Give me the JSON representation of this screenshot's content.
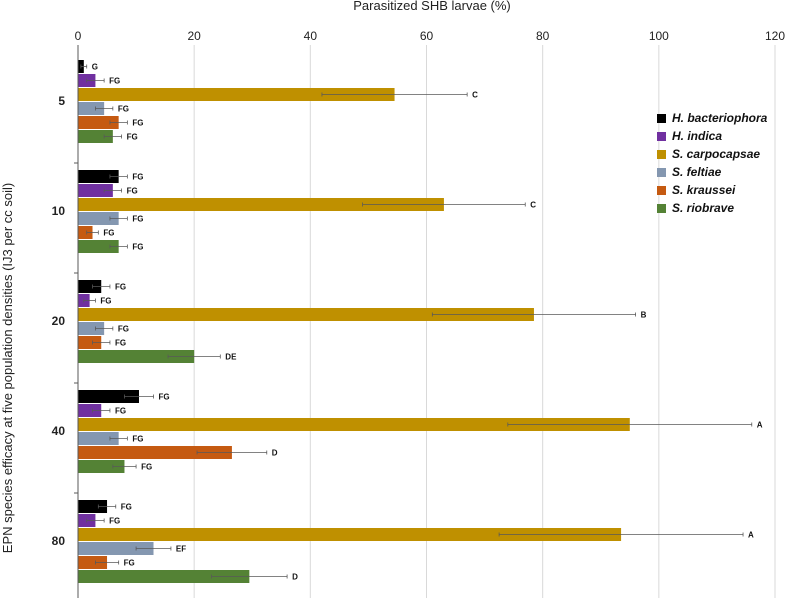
{
  "chart_data": {
    "type": "bar",
    "orientation": "horizontal",
    "title": "Parasitized SHB  larvae (%)",
    "xlabel": "Parasitized SHB  larvae (%)",
    "ylabel": "EPN species efficacy at five population densities (IJ3 per cc soil)",
    "xlim": [
      0,
      120
    ],
    "xticks": [
      "0",
      "20",
      "40",
      "60",
      "80",
      "100",
      "120"
    ],
    "categories": [
      "5",
      "10",
      "20",
      "40",
      "80"
    ],
    "legend_position": "right",
    "series": [
      {
        "name": "H. bacteriophora",
        "color": "#000000",
        "values": [
          1,
          7,
          4,
          10.5,
          5
        ],
        "errors": [
          0.5,
          1.5,
          1.5,
          2.5,
          1.5
        ],
        "labels": [
          "G",
          "FG",
          "FG",
          "FG",
          "FG"
        ]
      },
      {
        "name": "H. indica",
        "color": "#7030a0",
        "values": [
          3,
          6,
          2,
          4,
          3
        ],
        "errors": [
          1.5,
          1.5,
          1,
          1.5,
          1.5
        ],
        "labels": [
          "FG",
          "FG",
          "FG",
          "FG",
          "FG"
        ]
      },
      {
        "name": "S. carpocapsae",
        "color": "#bf9000",
        "values": [
          54.5,
          63,
          78.5,
          95,
          93.5
        ],
        "errors": [
          12.5,
          14,
          17.5,
          21,
          21
        ],
        "labels": [
          "C",
          "C",
          "B",
          "A",
          "A"
        ]
      },
      {
        "name": "S. feltiae",
        "color": "#8497b0",
        "values": [
          4.5,
          7,
          4.5,
          7,
          13
        ],
        "errors": [
          1.5,
          1.5,
          1.5,
          1.5,
          3
        ],
        "labels": [
          "FG",
          "FG",
          "FG",
          "FG",
          "EF"
        ]
      },
      {
        "name": "S. kraussei",
        "color": "#c55a11",
        "values": [
          7,
          2.5,
          4,
          26.5,
          5
        ],
        "errors": [
          1.5,
          1,
          1.5,
          6,
          2
        ],
        "labels": [
          "FG",
          "FG",
          "FG",
          "D",
          "FG"
        ]
      },
      {
        "name": "S. riobrave",
        "color": "#548235",
        "values": [
          6,
          7,
          20,
          8,
          29.5
        ],
        "errors": [
          1.5,
          1.5,
          4.5,
          2,
          6.5
        ],
        "labels": [
          "FG",
          "FG",
          "DE",
          "FG",
          "D"
        ]
      }
    ]
  }
}
